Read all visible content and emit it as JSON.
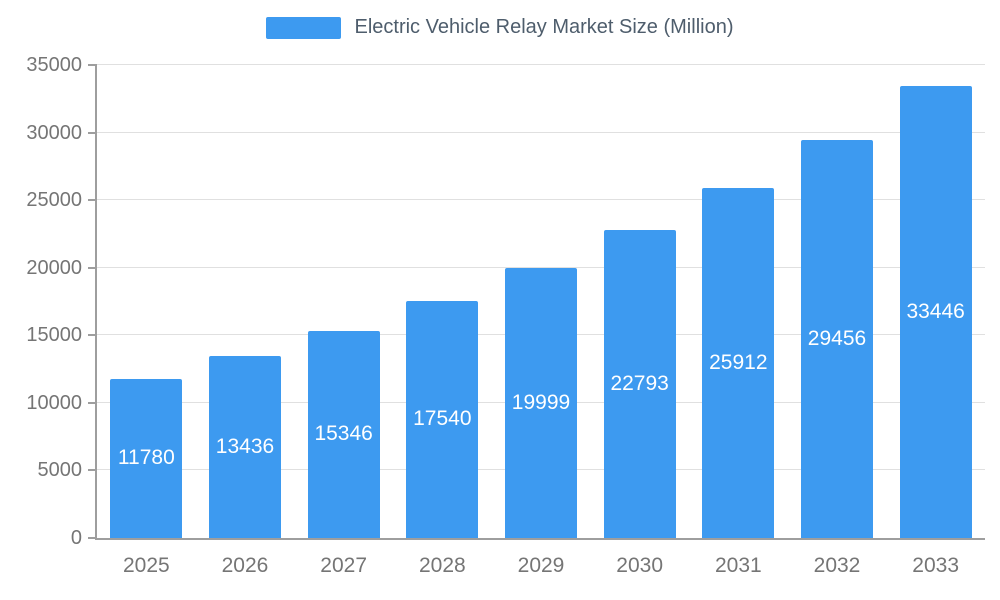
{
  "colors": {
    "bar": "#3D9AF0",
    "title_text": "#4E5D6C",
    "axis_text": "#757575",
    "gridline": "#E0E0E0",
    "axis_line": "#9E9E9E",
    "background": "#FFFFFF",
    "bar_label_text": "#FFFFFF"
  },
  "legend": {
    "label": "Electric Vehicle Relay Market Size (Million)"
  },
  "chart_data": {
    "type": "bar",
    "title": "Electric Vehicle Relay Market Size (Million)",
    "categories": [
      "2025",
      "2026",
      "2027",
      "2028",
      "2029",
      "2030",
      "2031",
      "2032",
      "2033"
    ],
    "values": [
      11780,
      13436,
      15346,
      17540,
      19999,
      22793,
      25912,
      29456,
      33446
    ],
    "xlabel": "",
    "ylabel": "",
    "ylim": [
      0,
      35000
    ],
    "ytick_step": 5000,
    "grid": true,
    "legend_position": "top",
    "bar_labels": "inside-center"
  }
}
